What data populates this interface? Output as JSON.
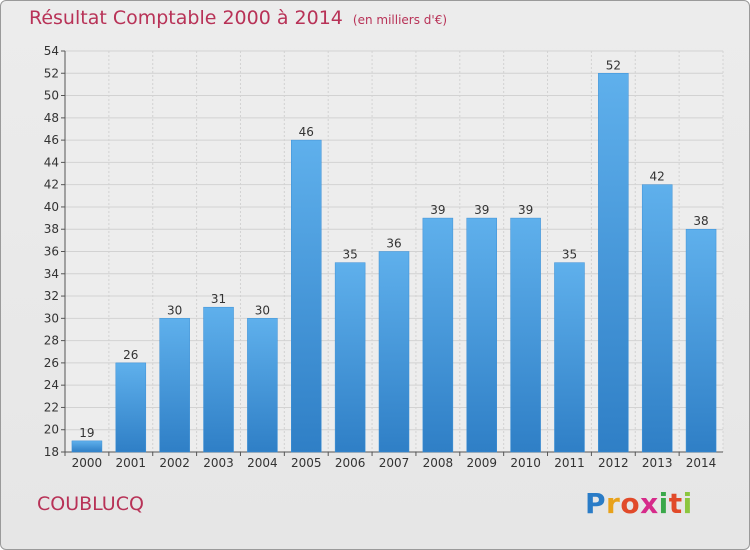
{
  "header": {
    "title": "Résultat Comptable 2000 à 2014",
    "subtitle": "(en milliers d'€)"
  },
  "footer": {
    "place": "COUBLUCQ",
    "logo": "Proxiti"
  },
  "colors": {
    "bar": "#4a9fe0",
    "bar_dark": "#2f7fc6",
    "title": "#b83257",
    "grid": "#d2d2d2"
  },
  "chart_data": {
    "type": "bar",
    "title": "Résultat Comptable 2000 à 2014",
    "subtitle": "(en milliers d'€)",
    "xlabel": "",
    "ylabel": "",
    "categories": [
      "2000",
      "2001",
      "2002",
      "2003",
      "2004",
      "2005",
      "2006",
      "2007",
      "2008",
      "2009",
      "2010",
      "2011",
      "2012",
      "2013",
      "2014"
    ],
    "values": [
      19,
      26,
      30,
      31,
      30,
      46,
      35,
      36,
      39,
      39,
      39,
      35,
      52,
      42,
      38
    ],
    "ylim": [
      18,
      54
    ],
    "yticks": [
      18,
      20,
      22,
      24,
      26,
      28,
      30,
      32,
      34,
      36,
      38,
      40,
      42,
      44,
      46,
      48,
      50,
      52,
      54
    ],
    "grid": true,
    "data_labels": true
  }
}
